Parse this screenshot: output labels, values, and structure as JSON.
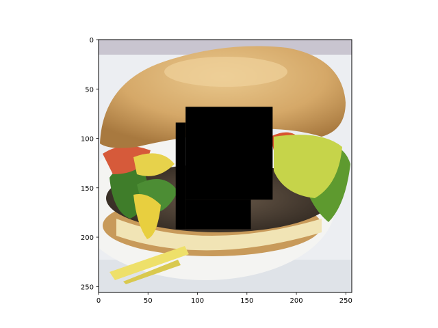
{
  "chart_data": {
    "type": "image",
    "title": "",
    "xlabel": "",
    "ylabel": "",
    "xlim": [
      0,
      256
    ],
    "ylim": [
      256,
      0
    ],
    "grid": false,
    "x_ticks": [
      0,
      50,
      100,
      150,
      200,
      250
    ],
    "y_ticks": [
      0,
      50,
      100,
      150,
      200,
      250
    ],
    "image_content": "burger-photo",
    "occlusion_color": "#000000",
    "occlusions": [
      {
        "x0": 88,
        "x1": 176,
        "y0": 68,
        "y1": 162
      },
      {
        "x0": 78,
        "x1": 88,
        "y0": 84,
        "y1": 192
      },
      {
        "x0": 88,
        "x1": 154,
        "y0": 162,
        "y1": 192
      }
    ]
  }
}
